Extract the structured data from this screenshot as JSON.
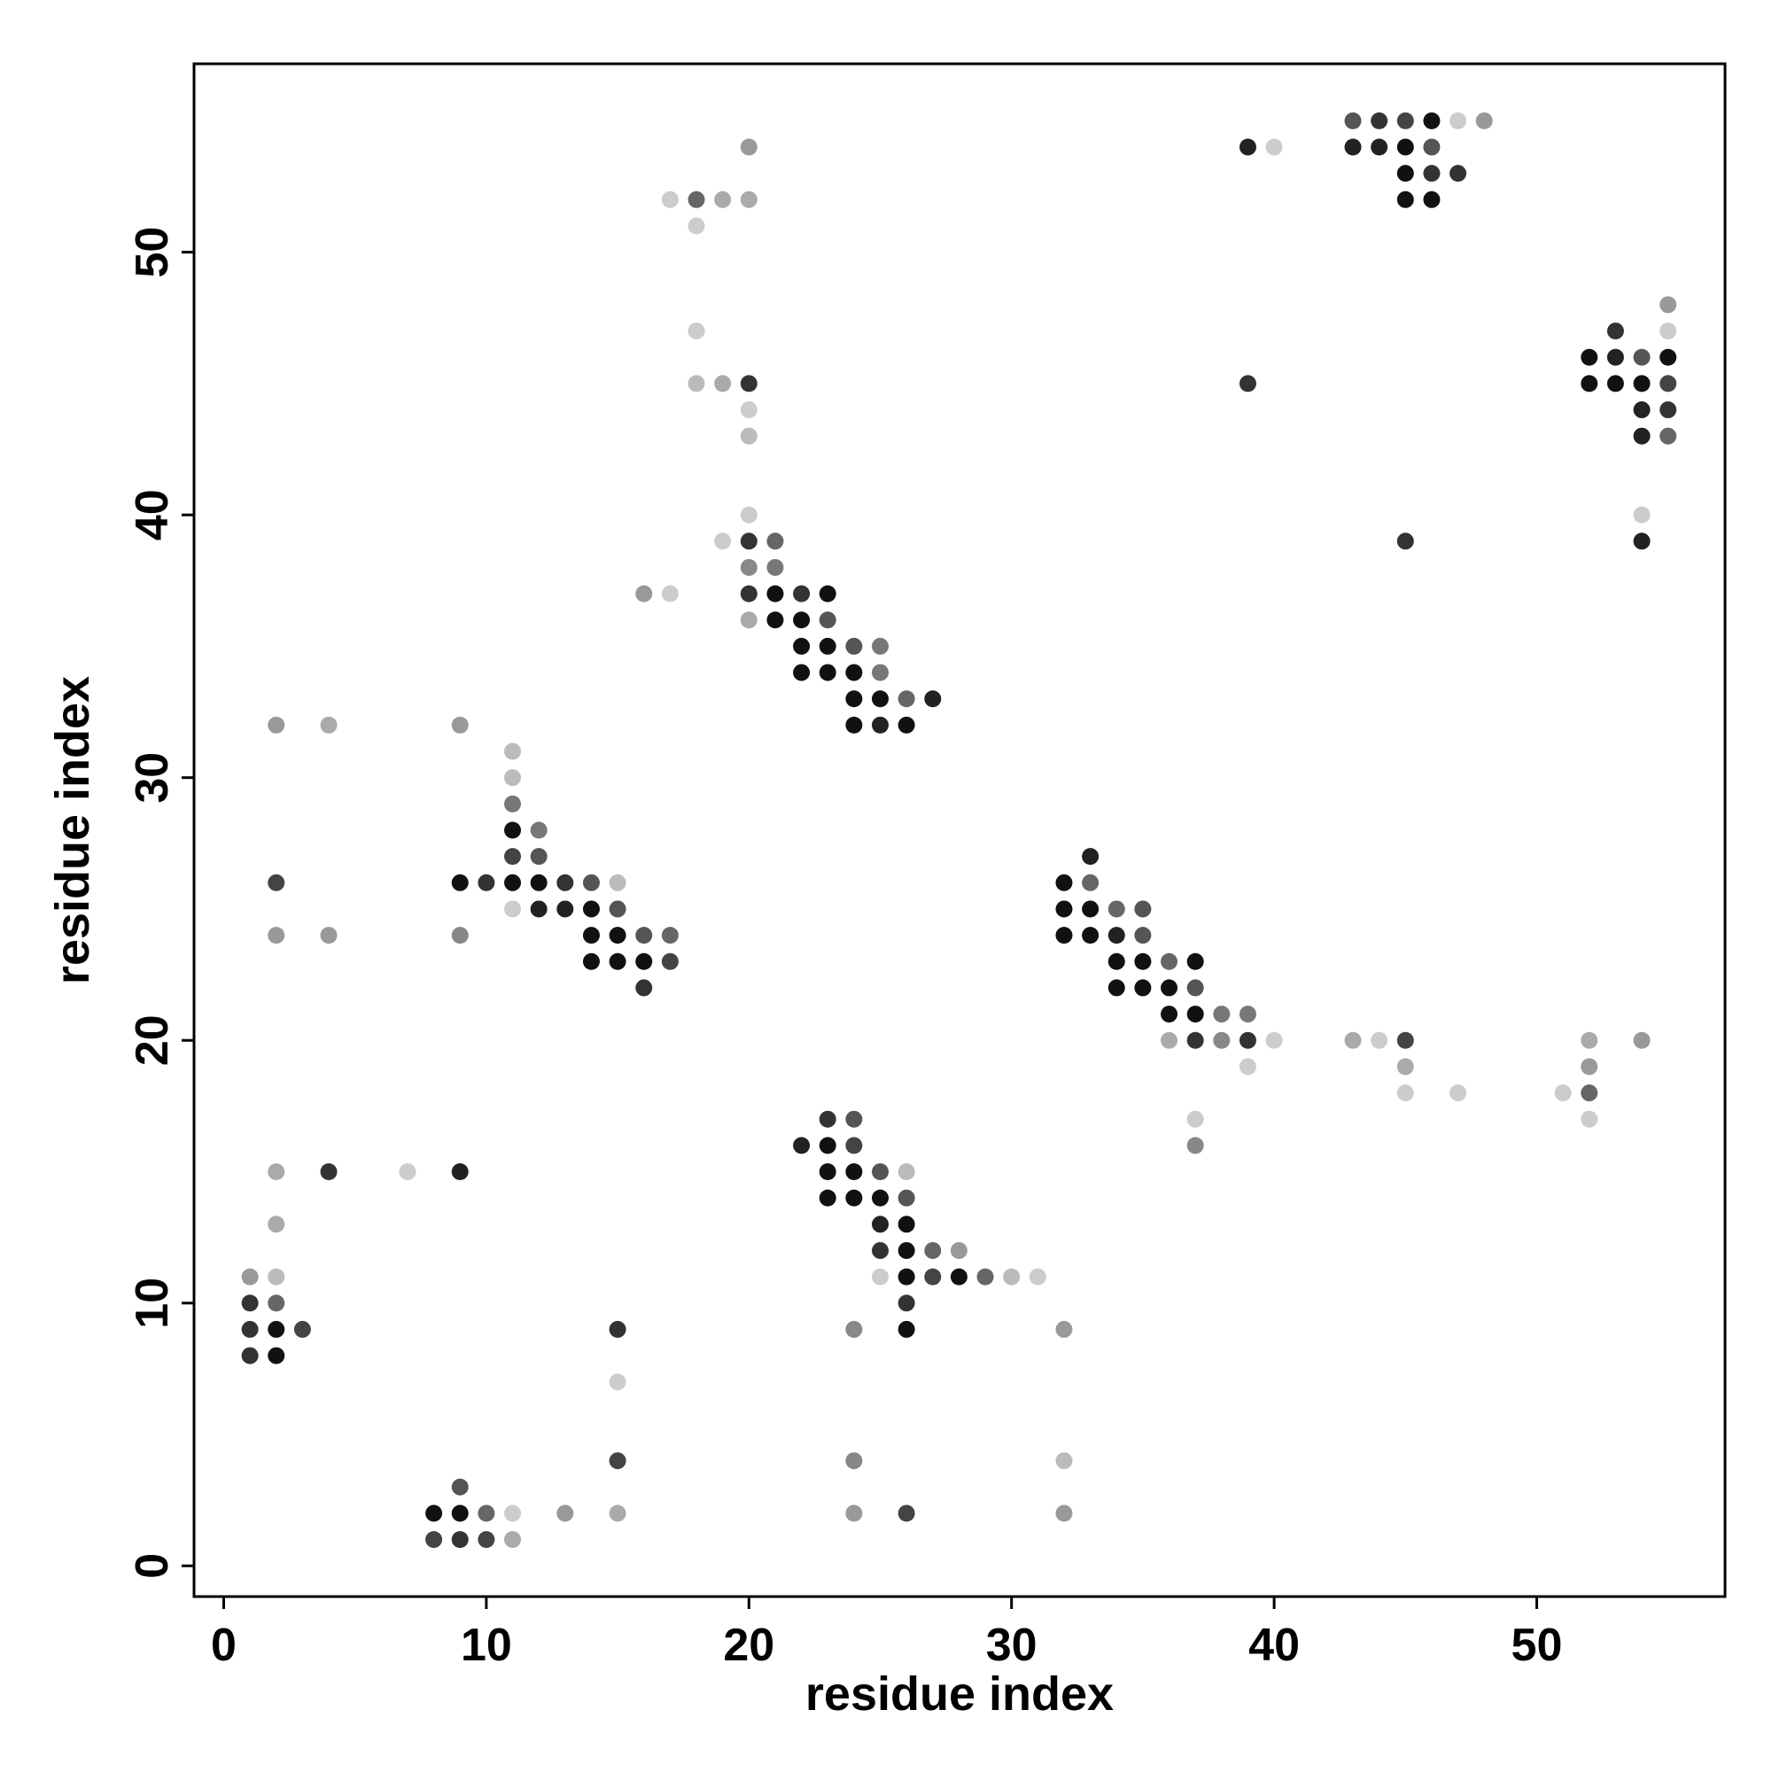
{
  "chart_data": {
    "type": "scatter",
    "xlabel": "residue index",
    "ylabel": "residue index",
    "xlim": [
      -1.13,
      57.17
    ],
    "ylim": [
      -1.17,
      57.17
    ],
    "xticks": [
      0,
      10,
      20,
      30,
      40,
      50
    ],
    "yticks": [
      0,
      10,
      20,
      30,
      40,
      50
    ],
    "points": [
      {
        "x": 43,
        "y": 55,
        "color": "#555"
      },
      {
        "x": 44,
        "y": 55,
        "color": "#333"
      },
      {
        "x": 45,
        "y": 55,
        "color": "#444"
      },
      {
        "x": 46,
        "y": 55,
        "color": "#111"
      },
      {
        "x": 47,
        "y": 55,
        "color": "#ccc"
      },
      {
        "x": 48,
        "y": 55,
        "color": "#999"
      },
      {
        "x": 20,
        "y": 54,
        "color": "#999"
      },
      {
        "x": 39,
        "y": 54,
        "color": "#222"
      },
      {
        "x": 40,
        "y": 54,
        "color": "#ccc"
      },
      {
        "x": 43,
        "y": 54,
        "color": "#222"
      },
      {
        "x": 44,
        "y": 54,
        "color": "#222"
      },
      {
        "x": 45,
        "y": 54,
        "color": "#111"
      },
      {
        "x": 46,
        "y": 54,
        "color": "#555"
      },
      {
        "x": 45,
        "y": 53,
        "color": "#111"
      },
      {
        "x": 46,
        "y": 53,
        "color": "#333"
      },
      {
        "x": 47,
        "y": 53,
        "color": "#333"
      },
      {
        "x": 17,
        "y": 52,
        "color": "#ccc"
      },
      {
        "x": 18,
        "y": 52,
        "color": "#666"
      },
      {
        "x": 19,
        "y": 52,
        "color": "#aaa"
      },
      {
        "x": 20,
        "y": 52,
        "color": "#aaa"
      },
      {
        "x": 45,
        "y": 52,
        "color": "#111"
      },
      {
        "x": 46,
        "y": 52,
        "color": "#111"
      },
      {
        "x": 18,
        "y": 51,
        "color": "#ccc"
      },
      {
        "x": 55,
        "y": 48,
        "color": "#999"
      },
      {
        "x": 18,
        "y": 47,
        "color": "#ccc"
      },
      {
        "x": 53,
        "y": 47,
        "color": "#333"
      },
      {
        "x": 55,
        "y": 47,
        "color": "#ccc"
      },
      {
        "x": 52,
        "y": 46,
        "color": "#111"
      },
      {
        "x": 53,
        "y": 46,
        "color": "#222"
      },
      {
        "x": 54,
        "y": 46,
        "color": "#555"
      },
      {
        "x": 55,
        "y": 46,
        "color": "#111"
      },
      {
        "x": 18,
        "y": 45,
        "color": "#bbb"
      },
      {
        "x": 19,
        "y": 45,
        "color": "#aaa"
      },
      {
        "x": 20,
        "y": 45,
        "color": "#333"
      },
      {
        "x": 39,
        "y": 45,
        "color": "#333"
      },
      {
        "x": 52,
        "y": 45,
        "color": "#111"
      },
      {
        "x": 53,
        "y": 45,
        "color": "#111"
      },
      {
        "x": 54,
        "y": 45,
        "color": "#111"
      },
      {
        "x": 55,
        "y": 45,
        "color": "#444"
      },
      {
        "x": 20,
        "y": 44,
        "color": "#ccc"
      },
      {
        "x": 54,
        "y": 44,
        "color": "#222"
      },
      {
        "x": 55,
        "y": 44,
        "color": "#333"
      },
      {
        "x": 20,
        "y": 43,
        "color": "#bbb"
      },
      {
        "x": 54,
        "y": 43,
        "color": "#222"
      },
      {
        "x": 55,
        "y": 43,
        "color": "#666"
      },
      {
        "x": 20,
        "y": 40,
        "color": "#ccc"
      },
      {
        "x": 54,
        "y": 40,
        "color": "#ccc"
      },
      {
        "x": 19,
        "y": 39,
        "color": "#ccc"
      },
      {
        "x": 20,
        "y": 39,
        "color": "#333"
      },
      {
        "x": 21,
        "y": 39,
        "color": "#666"
      },
      {
        "x": 45,
        "y": 39,
        "color": "#333"
      },
      {
        "x": 54,
        "y": 39,
        "color": "#222"
      },
      {
        "x": 20,
        "y": 38,
        "color": "#888"
      },
      {
        "x": 21,
        "y": 38,
        "color": "#777"
      },
      {
        "x": 16,
        "y": 37,
        "color": "#999"
      },
      {
        "x": 17,
        "y": 37,
        "color": "#ccc"
      },
      {
        "x": 20,
        "y": 37,
        "color": "#333"
      },
      {
        "x": 21,
        "y": 37,
        "color": "#111"
      },
      {
        "x": 22,
        "y": 37,
        "color": "#333"
      },
      {
        "x": 23,
        "y": 37,
        "color": "#111"
      },
      {
        "x": 20,
        "y": 36,
        "color": "#aaa"
      },
      {
        "x": 21,
        "y": 36,
        "color": "#111"
      },
      {
        "x": 22,
        "y": 36,
        "color": "#111"
      },
      {
        "x": 23,
        "y": 36,
        "color": "#555"
      },
      {
        "x": 22,
        "y": 35,
        "color": "#111"
      },
      {
        "x": 23,
        "y": 35,
        "color": "#111"
      },
      {
        "x": 24,
        "y": 35,
        "color": "#555"
      },
      {
        "x": 25,
        "y": 35,
        "color": "#777"
      },
      {
        "x": 22,
        "y": 34,
        "color": "#111"
      },
      {
        "x": 23,
        "y": 34,
        "color": "#111"
      },
      {
        "x": 24,
        "y": 34,
        "color": "#111"
      },
      {
        "x": 25,
        "y": 34,
        "color": "#777"
      },
      {
        "x": 24,
        "y": 33,
        "color": "#111"
      },
      {
        "x": 25,
        "y": 33,
        "color": "#111"
      },
      {
        "x": 26,
        "y": 33,
        "color": "#666"
      },
      {
        "x": 27,
        "y": 33,
        "color": "#222"
      },
      {
        "x": 2,
        "y": 32,
        "color": "#999"
      },
      {
        "x": 4,
        "y": 32,
        "color": "#aaa"
      },
      {
        "x": 9,
        "y": 32,
        "color": "#999"
      },
      {
        "x": 24,
        "y": 32,
        "color": "#111"
      },
      {
        "x": 25,
        "y": 32,
        "color": "#222"
      },
      {
        "x": 26,
        "y": 32,
        "color": "#111"
      },
      {
        "x": 11,
        "y": 31,
        "color": "#bbb"
      },
      {
        "x": 11,
        "y": 30,
        "color": "#bbb"
      },
      {
        "x": 11,
        "y": 29,
        "color": "#777"
      },
      {
        "x": 11,
        "y": 28,
        "color": "#111"
      },
      {
        "x": 12,
        "y": 28,
        "color": "#777"
      },
      {
        "x": 11,
        "y": 27,
        "color": "#444"
      },
      {
        "x": 12,
        "y": 27,
        "color": "#555"
      },
      {
        "x": 33,
        "y": 27,
        "color": "#222"
      },
      {
        "x": 2,
        "y": 26,
        "color": "#444"
      },
      {
        "x": 9,
        "y": 26,
        "color": "#111"
      },
      {
        "x": 10,
        "y": 26,
        "color": "#333"
      },
      {
        "x": 11,
        "y": 26,
        "color": "#111"
      },
      {
        "x": 12,
        "y": 26,
        "color": "#111"
      },
      {
        "x": 13,
        "y": 26,
        "color": "#333"
      },
      {
        "x": 14,
        "y": 26,
        "color": "#555"
      },
      {
        "x": 15,
        "y": 26,
        "color": "#bbb"
      },
      {
        "x": 32,
        "y": 26,
        "color": "#111"
      },
      {
        "x": 33,
        "y": 26,
        "color": "#666"
      },
      {
        "x": 11,
        "y": 25,
        "color": "#ccc"
      },
      {
        "x": 12,
        "y": 25,
        "color": "#222"
      },
      {
        "x": 13,
        "y": 25,
        "color": "#222"
      },
      {
        "x": 14,
        "y": 25,
        "color": "#111"
      },
      {
        "x": 15,
        "y": 25,
        "color": "#555"
      },
      {
        "x": 32,
        "y": 25,
        "color": "#111"
      },
      {
        "x": 33,
        "y": 25,
        "color": "#111"
      },
      {
        "x": 34,
        "y": 25,
        "color": "#666"
      },
      {
        "x": 35,
        "y": 25,
        "color": "#555"
      },
      {
        "x": 2,
        "y": 24,
        "color": "#999"
      },
      {
        "x": 4,
        "y": 24,
        "color": "#999"
      },
      {
        "x": 9,
        "y": 24,
        "color": "#888"
      },
      {
        "x": 14,
        "y": 24,
        "color": "#111"
      },
      {
        "x": 15,
        "y": 24,
        "color": "#111"
      },
      {
        "x": 16,
        "y": 24,
        "color": "#555"
      },
      {
        "x": 17,
        "y": 24,
        "color": "#666"
      },
      {
        "x": 32,
        "y": 24,
        "color": "#111"
      },
      {
        "x": 33,
        "y": 24,
        "color": "#111"
      },
      {
        "x": 34,
        "y": 24,
        "color": "#222"
      },
      {
        "x": 35,
        "y": 24,
        "color": "#555"
      },
      {
        "x": 14,
        "y": 23,
        "color": "#111"
      },
      {
        "x": 15,
        "y": 23,
        "color": "#111"
      },
      {
        "x": 16,
        "y": 23,
        "color": "#111"
      },
      {
        "x": 17,
        "y": 23,
        "color": "#444"
      },
      {
        "x": 34,
        "y": 23,
        "color": "#111"
      },
      {
        "x": 35,
        "y": 23,
        "color": "#111"
      },
      {
        "x": 36,
        "y": 23,
        "color": "#666"
      },
      {
        "x": 37,
        "y": 23,
        "color": "#111"
      },
      {
        "x": 16,
        "y": 22,
        "color": "#333"
      },
      {
        "x": 34,
        "y": 22,
        "color": "#111"
      },
      {
        "x": 35,
        "y": 22,
        "color": "#111"
      },
      {
        "x": 36,
        "y": 22,
        "color": "#111"
      },
      {
        "x": 37,
        "y": 22,
        "color": "#555"
      },
      {
        "x": 36,
        "y": 21,
        "color": "#111"
      },
      {
        "x": 37,
        "y": 21,
        "color": "#111"
      },
      {
        "x": 38,
        "y": 21,
        "color": "#777"
      },
      {
        "x": 39,
        "y": 21,
        "color": "#777"
      },
      {
        "x": 36,
        "y": 20,
        "color": "#aaa"
      },
      {
        "x": 37,
        "y": 20,
        "color": "#333"
      },
      {
        "x": 38,
        "y": 20,
        "color": "#888"
      },
      {
        "x": 39,
        "y": 20,
        "color": "#333"
      },
      {
        "x": 40,
        "y": 20,
        "color": "#ccc"
      },
      {
        "x": 43,
        "y": 20,
        "color": "#aaa"
      },
      {
        "x": 44,
        "y": 20,
        "color": "#ccc"
      },
      {
        "x": 45,
        "y": 20,
        "color": "#444"
      },
      {
        "x": 52,
        "y": 20,
        "color": "#aaa"
      },
      {
        "x": 54,
        "y": 20,
        "color": "#999"
      },
      {
        "x": 39,
        "y": 19,
        "color": "#ccc"
      },
      {
        "x": 45,
        "y": 19,
        "color": "#aaa"
      },
      {
        "x": 52,
        "y": 19,
        "color": "#999"
      },
      {
        "x": 45,
        "y": 18,
        "color": "#ccc"
      },
      {
        "x": 47,
        "y": 18,
        "color": "#ccc"
      },
      {
        "x": 51,
        "y": 18,
        "color": "#ccc"
      },
      {
        "x": 52,
        "y": 18,
        "color": "#666"
      },
      {
        "x": 23,
        "y": 17,
        "color": "#333"
      },
      {
        "x": 24,
        "y": 17,
        "color": "#555"
      },
      {
        "x": 37,
        "y": 17,
        "color": "#ccc"
      },
      {
        "x": 52,
        "y": 17,
        "color": "#ccc"
      },
      {
        "x": 22,
        "y": 16,
        "color": "#222"
      },
      {
        "x": 23,
        "y": 16,
        "color": "#111"
      },
      {
        "x": 24,
        "y": 16,
        "color": "#444"
      },
      {
        "x": 37,
        "y": 16,
        "color": "#888"
      },
      {
        "x": 2,
        "y": 15,
        "color": "#aaa"
      },
      {
        "x": 4,
        "y": 15,
        "color": "#333"
      },
      {
        "x": 7,
        "y": 15,
        "color": "#ccc"
      },
      {
        "x": 9,
        "y": 15,
        "color": "#222"
      },
      {
        "x": 23,
        "y": 15,
        "color": "#111"
      },
      {
        "x": 24,
        "y": 15,
        "color": "#111"
      },
      {
        "x": 25,
        "y": 15,
        "color": "#555"
      },
      {
        "x": 26,
        "y": 15,
        "color": "#bbb"
      },
      {
        "x": 23,
        "y": 14,
        "color": "#111"
      },
      {
        "x": 24,
        "y": 14,
        "color": "#111"
      },
      {
        "x": 25,
        "y": 14,
        "color": "#111"
      },
      {
        "x": 26,
        "y": 14,
        "color": "#555"
      },
      {
        "x": 2,
        "y": 13,
        "color": "#aaa"
      },
      {
        "x": 25,
        "y": 13,
        "color": "#222"
      },
      {
        "x": 26,
        "y": 13,
        "color": "#111"
      },
      {
        "x": 25,
        "y": 12,
        "color": "#333"
      },
      {
        "x": 26,
        "y": 12,
        "color": "#111"
      },
      {
        "x": 27,
        "y": 12,
        "color": "#666"
      },
      {
        "x": 28,
        "y": 12,
        "color": "#999"
      },
      {
        "x": 1,
        "y": 11,
        "color": "#999"
      },
      {
        "x": 2,
        "y": 11,
        "color": "#bbb"
      },
      {
        "x": 25,
        "y": 11,
        "color": "#ccc"
      },
      {
        "x": 26,
        "y": 11,
        "color": "#111"
      },
      {
        "x": 27,
        "y": 11,
        "color": "#444"
      },
      {
        "x": 28,
        "y": 11,
        "color": "#111"
      },
      {
        "x": 29,
        "y": 11,
        "color": "#666"
      },
      {
        "x": 30,
        "y": 11,
        "color": "#bbb"
      },
      {
        "x": 31,
        "y": 11,
        "color": "#ccc"
      },
      {
        "x": 1,
        "y": 10,
        "color": "#333"
      },
      {
        "x": 2,
        "y": 10,
        "color": "#666"
      },
      {
        "x": 26,
        "y": 10,
        "color": "#333"
      },
      {
        "x": 1,
        "y": 9,
        "color": "#333"
      },
      {
        "x": 2,
        "y": 9,
        "color": "#111"
      },
      {
        "x": 3,
        "y": 9,
        "color": "#444"
      },
      {
        "x": 15,
        "y": 9,
        "color": "#333"
      },
      {
        "x": 24,
        "y": 9,
        "color": "#888"
      },
      {
        "x": 26,
        "y": 9,
        "color": "#111"
      },
      {
        "x": 32,
        "y": 9,
        "color": "#999"
      },
      {
        "x": 1,
        "y": 8,
        "color": "#333"
      },
      {
        "x": 2,
        "y": 8,
        "color": "#111"
      },
      {
        "x": 15,
        "y": 7,
        "color": "#ccc"
      },
      {
        "x": 15,
        "y": 4,
        "color": "#444"
      },
      {
        "x": 24,
        "y": 4,
        "color": "#888"
      },
      {
        "x": 32,
        "y": 4,
        "color": "#bbb"
      },
      {
        "x": 9,
        "y": 3,
        "color": "#555"
      },
      {
        "x": 8,
        "y": 2,
        "color": "#111"
      },
      {
        "x": 9,
        "y": 2,
        "color": "#111"
      },
      {
        "x": 10,
        "y": 2,
        "color": "#666"
      },
      {
        "x": 11,
        "y": 2,
        "color": "#ccc"
      },
      {
        "x": 13,
        "y": 2,
        "color": "#999"
      },
      {
        "x": 15,
        "y": 2,
        "color": "#aaa"
      },
      {
        "x": 24,
        "y": 2,
        "color": "#999"
      },
      {
        "x": 26,
        "y": 2,
        "color": "#444"
      },
      {
        "x": 32,
        "y": 2,
        "color": "#999"
      },
      {
        "x": 8,
        "y": 1,
        "color": "#444"
      },
      {
        "x": 9,
        "y": 1,
        "color": "#333"
      },
      {
        "x": 10,
        "y": 1,
        "color": "#444"
      },
      {
        "x": 11,
        "y": 1,
        "color": "#aaa"
      }
    ]
  }
}
